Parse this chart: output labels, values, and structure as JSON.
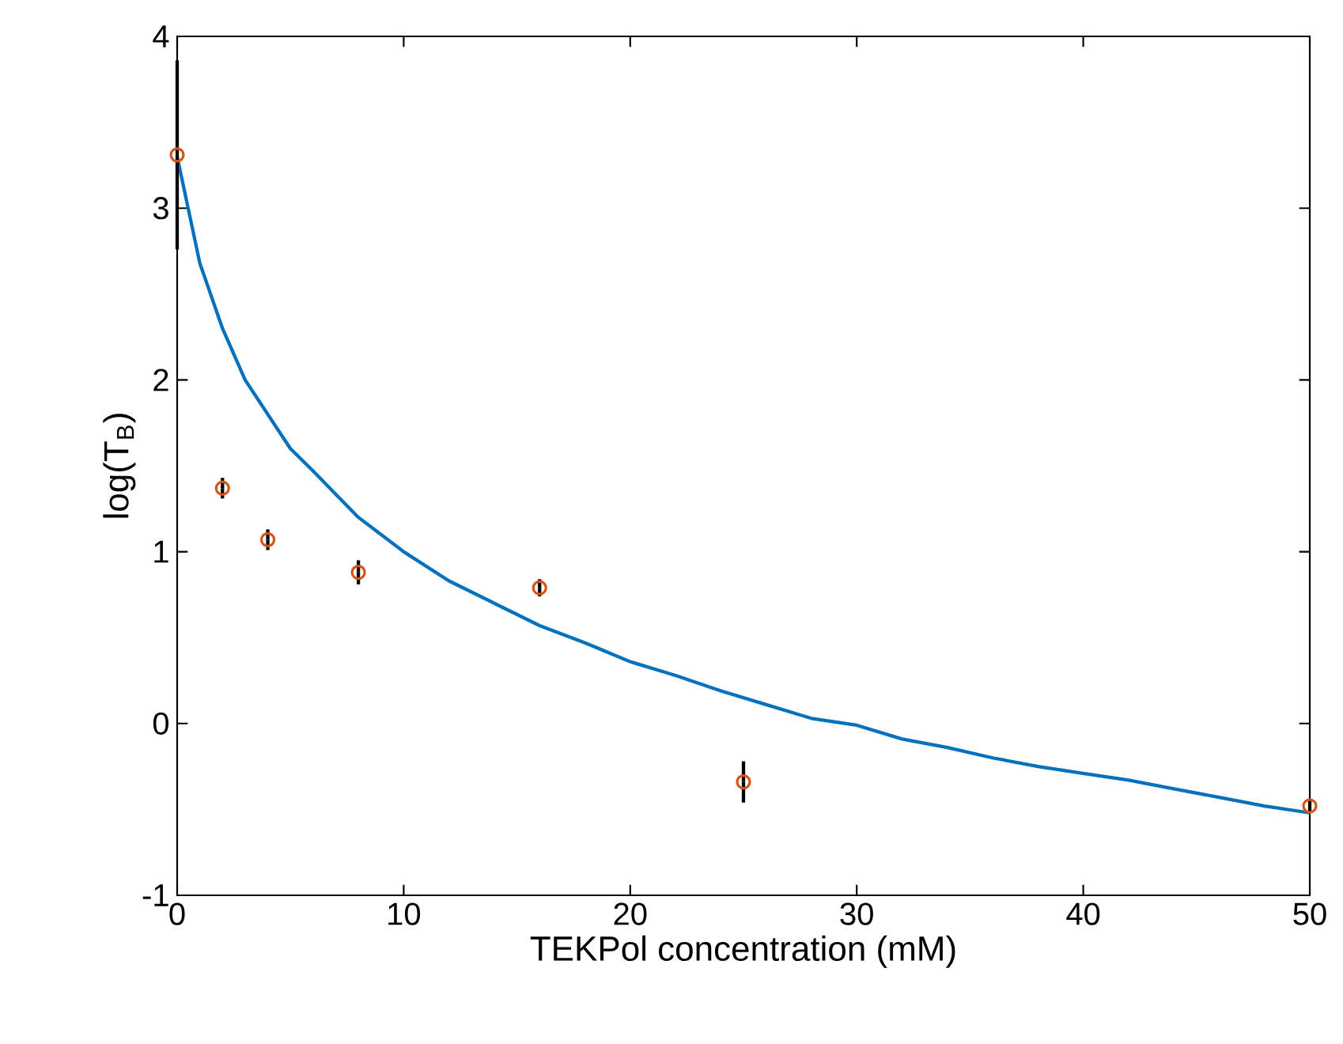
{
  "chart_data": {
    "type": "scatter",
    "xlabel": "TEKPol concentration (mM)",
    "ylabel": "log(T$_{B}$)",
    "xlim": [
      0,
      50
    ],
    "ylim": [
      -1,
      4
    ],
    "xticks": [
      0,
      10,
      20,
      30,
      40,
      50
    ],
    "yticks": [
      -1,
      0,
      1,
      2,
      3,
      4
    ],
    "grid": false,
    "series": [
      {
        "type": "line",
        "color": "#0072bd",
        "line_style": "solid",
        "marker": "none",
        "x": [
          0,
          1,
          2,
          3,
          4,
          5,
          6,
          8,
          10,
          12,
          14,
          16,
          18,
          20,
          22,
          24,
          26,
          28,
          30,
          32,
          34,
          36,
          38,
          40,
          42,
          44,
          46,
          48,
          50
        ],
        "values": [
          3.3,
          2.68,
          2.3,
          2.0,
          1.8,
          1.6,
          1.47,
          1.2,
          1.0,
          0.83,
          0.7,
          0.57,
          0.47,
          0.36,
          0.28,
          0.19,
          0.11,
          0.03,
          -0.01,
          -0.09,
          -0.14,
          -0.2,
          -0.25,
          -0.29,
          -0.33,
          -0.38,
          -0.43,
          -0.48,
          -0.52
        ]
      },
      {
        "color": "#d95319",
        "marker": "circle",
        "x": [
          0,
          2,
          4,
          8,
          16,
          25,
          50
        ],
        "values": [
          3.31,
          1.37,
          1.07,
          0.88,
          0.79,
          -0.34,
          -0.48
        ],
        "errors": [
          0.55,
          0.06,
          0.06,
          0.07,
          0.05,
          0.12,
          0.03
        ]
      }
    ]
  }
}
